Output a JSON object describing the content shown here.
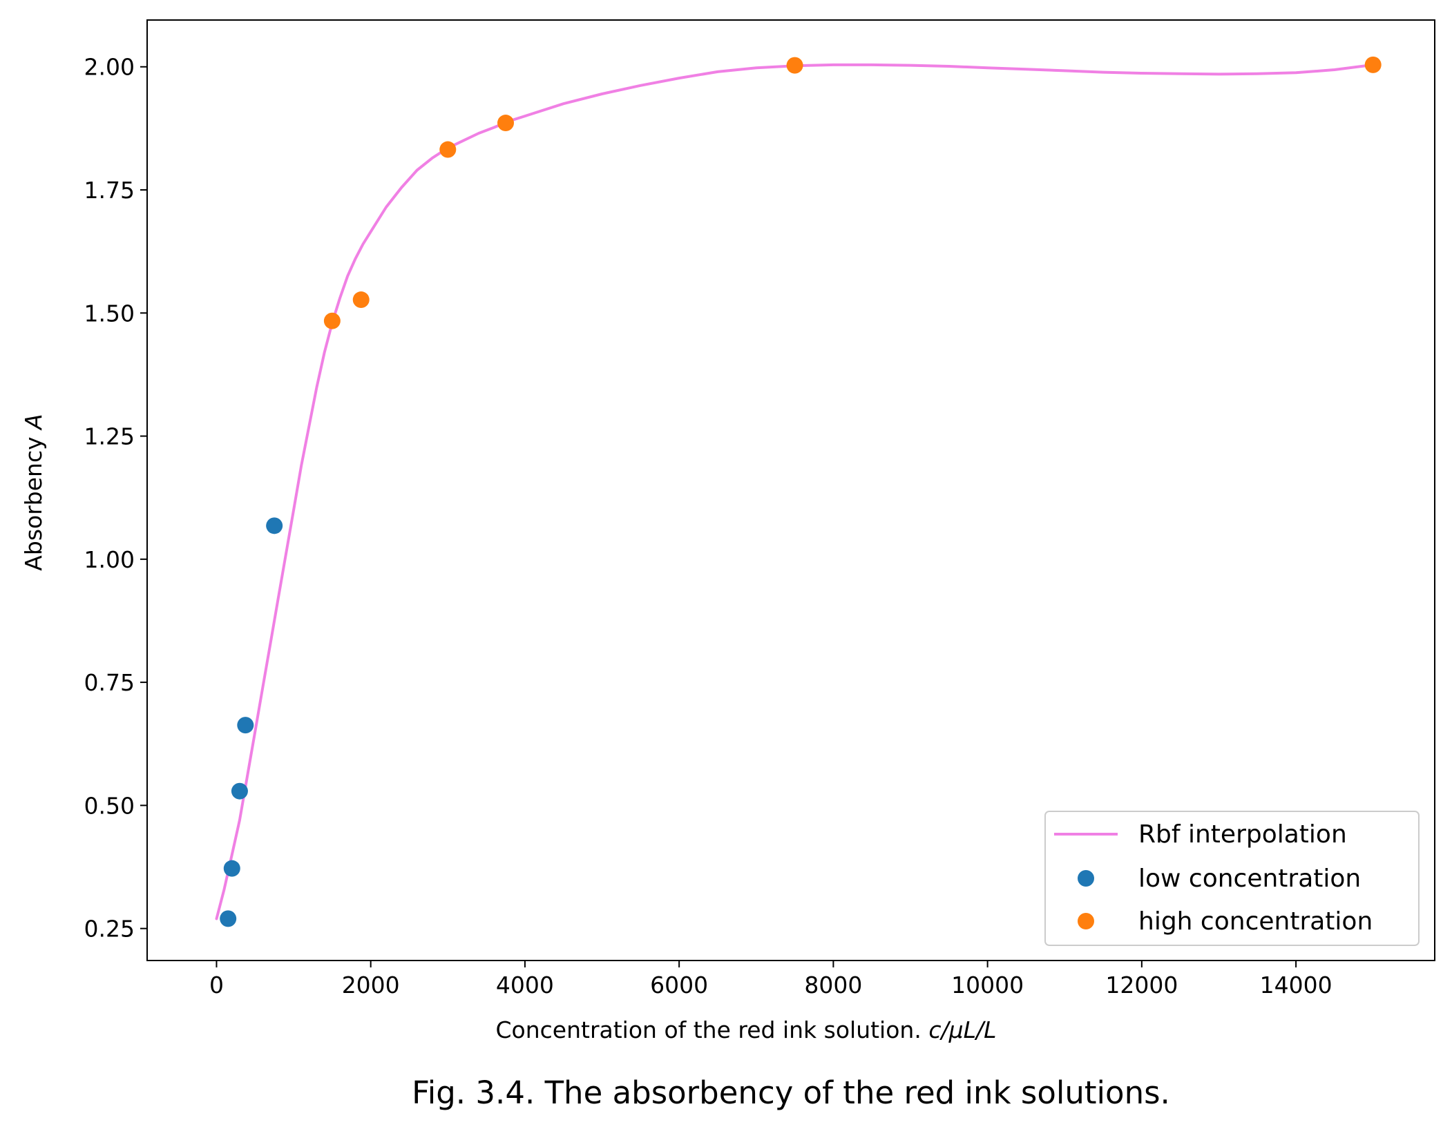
{
  "caption": "Fig. 3.4. The absorbency of the red ink solutions.",
  "chart_data": {
    "type": "scatter",
    "xlabel_text": "Concentration of the red ink solution.",
    "xlabel_unit": "c/μL/L",
    "ylabel_text": "Absorbency",
    "ylabel_symbol": "A",
    "xlim": [
      -900,
      15800
    ],
    "ylim": [
      0.185,
      2.095
    ],
    "xticks": [
      0,
      2000,
      4000,
      6000,
      8000,
      10000,
      12000,
      14000
    ],
    "xtick_labels": [
      "0",
      "2000",
      "4000",
      "6000",
      "8000",
      "10000",
      "12000",
      "14000"
    ],
    "yticks": [
      0.25,
      0.5,
      0.75,
      1.0,
      1.25,
      1.5,
      1.75,
      2.0
    ],
    "ytick_labels": [
      "0.25",
      "0.50",
      "0.75",
      "1.00",
      "1.25",
      "1.50",
      "1.75",
      "2.00"
    ],
    "grid": false,
    "legend_position": "lower-right",
    "series": [
      {
        "name": "Rbf interpolation",
        "kind": "line",
        "color": "#f080e4",
        "x": [
          0,
          100,
          200,
          300,
          400,
          500,
          600,
          700,
          800,
          900,
          1000,
          1100,
          1200,
          1300,
          1400,
          1500,
          1600,
          1700,
          1800,
          1900,
          2000,
          2200,
          2400,
          2600,
          2800,
          3000,
          3200,
          3400,
          3600,
          3800,
          4000,
          4500,
          5000,
          5500,
          6000,
          6500,
          7000,
          7500,
          8000,
          8500,
          9000,
          9500,
          10000,
          10500,
          11000,
          11500,
          12000,
          12500,
          13000,
          13500,
          14000,
          14500,
          15000
        ],
        "y": [
          0.27,
          0.33,
          0.4,
          0.47,
          0.56,
          0.65,
          0.74,
          0.83,
          0.92,
          1.01,
          1.1,
          1.19,
          1.27,
          1.35,
          1.42,
          1.48,
          1.53,
          1.575,
          1.61,
          1.64,
          1.665,
          1.715,
          1.755,
          1.79,
          1.815,
          1.835,
          1.85,
          1.865,
          1.877,
          1.89,
          1.9,
          1.925,
          1.945,
          1.962,
          1.977,
          1.99,
          1.998,
          2.002,
          2.004,
          2.004,
          2.003,
          2.001,
          1.998,
          1.995,
          1.992,
          1.989,
          1.987,
          1.986,
          1.985,
          1.986,
          1.988,
          1.994,
          2.004
        ]
      },
      {
        "name": "low concentration",
        "kind": "scatter",
        "color": "#1f77b4",
        "x": [
          150,
          200,
          300,
          375,
          750
        ],
        "y": [
          0.27,
          0.372,
          0.529,
          0.663,
          1.068
        ]
      },
      {
        "name": "high concentration",
        "kind": "scatter",
        "color": "#ff7f0e",
        "x": [
          1500,
          1875,
          3000,
          3750,
          7500,
          15000
        ],
        "y": [
          1.484,
          1.527,
          1.832,
          1.886,
          2.003,
          2.004
        ]
      }
    ]
  }
}
